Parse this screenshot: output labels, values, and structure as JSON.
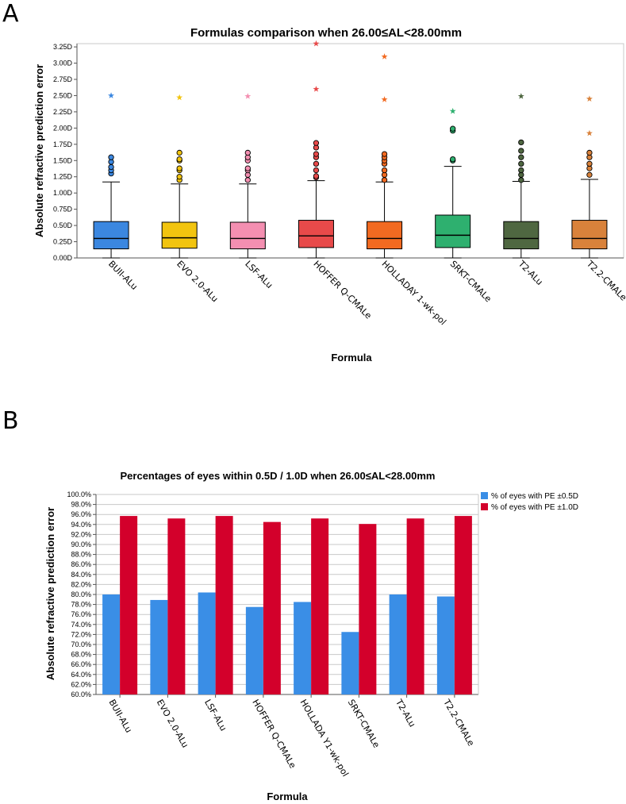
{
  "panel_a": {
    "letter": "A",
    "chart_data": {
      "type": "box",
      "title": "Formulas comparison when 26.00≤AL<28.00mm",
      "xlabel": "Formula",
      "ylabel": "Absolute refractive prediction error",
      "ylim": [
        0,
        3.3
      ],
      "yticks": [
        "0.00D",
        "0.25D",
        "0.50D",
        "0.75D",
        "1.00D",
        "1.25D",
        "1.50D",
        "1.75D",
        "2.00D",
        "2.25D",
        "2.50D",
        "2.75D",
        "3.00D",
        "3.25D"
      ],
      "categories": [
        "BUII-ALu",
        "EVO 2.0-ALu",
        "LSF-ALu",
        "HOFFER Q-CMALe",
        "HOLLADAY 1-wk-pol",
        "SRKT-CMALe",
        "T2-ALu",
        "T2.2-CMALe"
      ],
      "colors": [
        "#3b87e0",
        "#f2c40f",
        "#f48fb1",
        "#e84a4a",
        "#f26a21",
        "#2eb06f",
        "#4f6741",
        "#d9823b"
      ],
      "boxes": [
        {
          "min": 0.0,
          "q1": 0.14,
          "median": 0.3,
          "q3": 0.56,
          "max": 1.17,
          "outliers": [
            1.3,
            1.35,
            1.4,
            1.48,
            1.55
          ],
          "extremes": [
            2.5
          ]
        },
        {
          "min": 0.0,
          "q1": 0.15,
          "median": 0.31,
          "q3": 0.55,
          "max": 1.14,
          "outliers": [
            1.2,
            1.25,
            1.35,
            1.38,
            1.5,
            1.52,
            1.62
          ],
          "extremes": [
            2.47
          ]
        },
        {
          "min": 0.0,
          "q1": 0.14,
          "median": 0.3,
          "q3": 0.55,
          "max": 1.14,
          "outliers": [
            1.2,
            1.28,
            1.35,
            1.38,
            1.5,
            1.55,
            1.62
          ],
          "extremes": [
            2.49
          ]
        },
        {
          "min": 0.0,
          "q1": 0.16,
          "median": 0.34,
          "q3": 0.58,
          "max": 1.19,
          "outliers": [
            1.24,
            1.26,
            1.35,
            1.45,
            1.55,
            1.6,
            1.7,
            1.77
          ],
          "extremes": [
            2.6,
            3.3
          ]
        },
        {
          "min": 0.0,
          "q1": 0.14,
          "median": 0.3,
          "q3": 0.56,
          "max": 1.17,
          "outliers": [
            1.2,
            1.28,
            1.35,
            1.45,
            1.5,
            1.55,
            1.6
          ],
          "extremes": [
            2.44,
            3.1
          ]
        },
        {
          "min": 0.0,
          "q1": 0.16,
          "median": 0.35,
          "q3": 0.66,
          "max": 1.41,
          "outliers": [
            1.5,
            1.52,
            1.96,
            1.99
          ],
          "extremes": [
            2.26
          ]
        },
        {
          "min": 0.0,
          "q1": 0.14,
          "median": 0.3,
          "q3": 0.56,
          "max": 1.18,
          "outliers": [
            1.2,
            1.28,
            1.35,
            1.45,
            1.55,
            1.65,
            1.78
          ],
          "extremes": [
            2.49
          ]
        },
        {
          "min": 0.0,
          "q1": 0.14,
          "median": 0.3,
          "q3": 0.58,
          "max": 1.21,
          "outliers": [
            1.28,
            1.38,
            1.45,
            1.55,
            1.62
          ],
          "extremes": [
            1.92,
            2.45
          ]
        }
      ]
    }
  },
  "panel_b": {
    "letter": "B",
    "chart_data": {
      "type": "bar",
      "title": "Percentages of eyes within 0.5D / 1.0D when 26.00≤AL<28.00mm",
      "xlabel": "Formula",
      "ylabel": "Absolute refractive prediction error",
      "ylim": [
        60,
        100
      ],
      "yticks": [
        "60.0%",
        "62.0%",
        "64.0%",
        "66.0%",
        "68.0%",
        "70.0%",
        "72.0%",
        "74.0%",
        "76.0%",
        "78.0%",
        "80.0%",
        "82.0%",
        "84.0%",
        "86.0%",
        "88.0%",
        "90.0%",
        "92.0%",
        "94.0%",
        "96.0%",
        "98.0%",
        "100.0%"
      ],
      "categories": [
        "BUII-ALu",
        "EVO 2.0-ALu",
        "LSF-ALu",
        "HOFFER Q-CMALe",
        "HOLLADA Y1-wk-pol",
        "SRKT-CMALe",
        "T2-ALu",
        "T2.2-CMALe"
      ],
      "series": [
        {
          "name": "% of eyes with PE ±0.5D",
          "color": "#3a8ee6",
          "values": [
            80.0,
            78.9,
            80.4,
            77.5,
            78.5,
            72.5,
            80.0,
            79.6
          ]
        },
        {
          "name": "% of eyes with PE ±1.0D",
          "color": "#d3002b",
          "values": [
            95.7,
            95.2,
            95.7,
            94.5,
            95.2,
            94.1,
            95.2,
            95.7
          ]
        }
      ],
      "legend_position": "top-right"
    }
  }
}
